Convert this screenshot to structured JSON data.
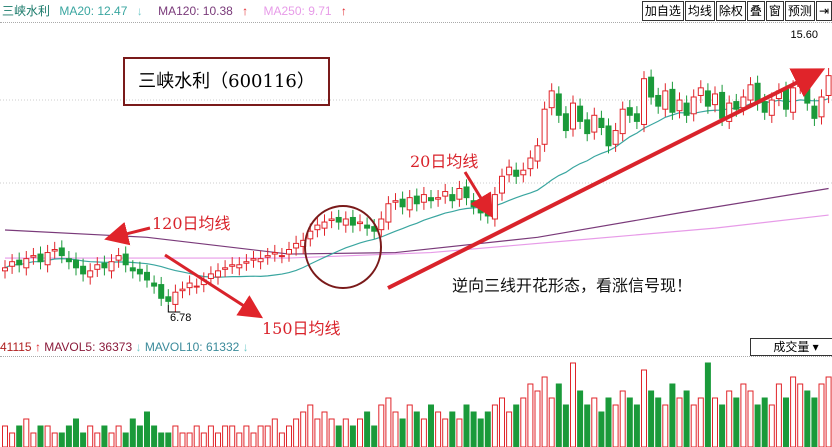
{
  "legend": {
    "name": "三峡水利",
    "ma20": "MA20: 12.47",
    "ma120": "MA120: 10.38",
    "ma250": "MA250: 9.71"
  },
  "toolbar": [
    "加自选",
    "均线",
    "除权",
    "叠",
    "窗",
    "预测",
    "⇥"
  ],
  "price_label": "15.60",
  "low_label": "6.78",
  "volume_legend": {
    "vol": "41115",
    "mavol5": "MAVOL5: 36373",
    "mavol10": "MAVOL10: 61332"
  },
  "volume_select": "成交量 ▾",
  "annotations": {
    "title": "三峡水利（600116）",
    "ma20": "20日均线",
    "ma120": "120日均线",
    "ma150": "150日均线",
    "pattern": "逆向三线开花形态，看涨信号现！"
  },
  "colors": {
    "up": "#e0242a",
    "down": "#1a9a3a",
    "ma20": "#3aa6a0",
    "ma120": "#7a3a7a",
    "ma250": "#e79be8",
    "annotation": "#d9232b"
  },
  "chart_data": {
    "type": "candlestick",
    "price_tick": 15.6,
    "low": 6.78,
    "close": [
      8.0,
      8.2,
      8.1,
      8.3,
      8.4,
      8.2,
      8.5,
      8.6,
      8.4,
      8.2,
      8.0,
      7.8,
      7.9,
      8.1,
      8.0,
      8.2,
      8.4,
      8.1,
      7.9,
      7.8,
      7.6,
      7.4,
      7.0,
      6.9,
      7.2,
      7.3,
      7.5,
      7.4,
      7.6,
      7.8,
      7.9,
      8.0,
      8.1,
      8.1,
      8.2,
      8.3,
      8.3,
      8.4,
      8.5,
      8.4,
      8.6,
      8.8,
      8.9,
      9.2,
      9.4,
      9.5,
      9.6,
      9.5,
      9.6,
      9.4,
      9.5,
      9.3,
      9.2,
      9.6,
      10.1,
      10.2,
      10.0,
      10.3,
      10.1,
      10.4,
      10.2,
      10.3,
      10.5,
      10.2,
      10.6,
      10.3,
      10.0,
      9.8,
      9.7,
      10.4,
      11.0,
      11.3,
      11.0,
      11.2,
      11.6,
      12.0,
      13.2,
      13.8,
      13.0,
      12.5,
      13.4,
      12.8,
      12.4,
      13.0,
      12.6,
      12.0,
      12.5,
      13.2,
      13.0,
      12.8,
      14.2,
      13.6,
      13.3,
      13.8,
      13.1,
      13.5,
      13.0,
      13.6,
      13.9,
      13.3,
      13.7,
      12.9,
      13.4,
      13.2,
      13.6,
      14.0,
      13.4,
      13.1,
      13.5,
      13.8,
      13.2,
      13.9,
      14.2,
      13.4,
      12.9,
      13.6,
      14.3
    ],
    "ma120": [
      [
        0,
        9.24
      ],
      [
        20,
        9.0
      ],
      [
        40,
        8.45
      ],
      [
        55,
        8.5
      ],
      [
        75,
        9.0
      ],
      [
        95,
        9.8
      ],
      [
        116,
        10.6
      ]
    ],
    "ma250": [
      [
        0,
        8.32
      ],
      [
        40,
        8.32
      ],
      [
        60,
        8.5
      ],
      [
        80,
        8.9
      ],
      [
        100,
        9.3
      ],
      [
        116,
        9.73
      ]
    ],
    "volume": [
      3,
      2,
      3,
      4,
      2,
      3,
      3,
      2,
      2,
      3,
      4,
      2,
      3,
      2,
      3,
      2,
      3,
      2,
      4,
      3,
      5,
      3,
      2,
      2,
      3,
      2,
      2,
      3,
      2,
      3,
      2,
      3,
      3,
      2,
      3,
      2,
      3,
      3,
      4,
      2,
      3,
      4,
      5,
      6,
      4,
      5,
      4,
      3,
      4,
      3,
      4,
      5,
      3,
      6,
      7,
      5,
      4,
      6,
      5,
      4,
      6,
      5,
      4,
      5,
      4,
      6,
      5,
      4,
      5,
      6,
      7,
      5,
      6,
      7,
      9,
      8,
      10,
      7,
      9,
      6,
      12,
      8,
      6,
      7,
      5,
      7,
      6,
      8,
      7,
      6,
      11,
      8,
      7,
      6,
      9,
      7,
      8,
      6,
      7,
      12,
      7,
      6,
      8,
      7,
      9,
      8,
      6,
      7,
      6,
      9,
      7,
      10,
      9,
      8,
      7,
      9,
      10
    ]
  }
}
